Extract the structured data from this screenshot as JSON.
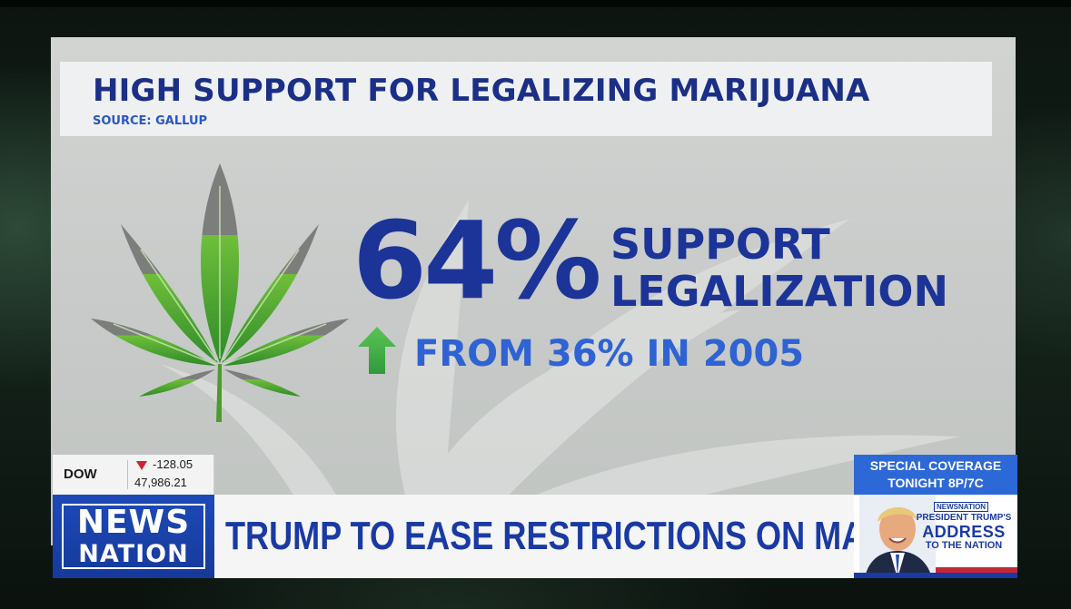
{
  "graphic": {
    "headline": "HIGH SUPPORT FOR LEGALIZING MARIJUANA",
    "source": "SOURCE: GALLUP",
    "stat_value": "64%",
    "stat_label_line1": "SUPPORT",
    "stat_label_line2": "LEGALIZATION",
    "change_text": "FROM 36% IN 2005"
  },
  "ticker": {
    "name": "DOW",
    "change": "-128.05",
    "value": "47,986.21"
  },
  "logo": {
    "line1": "NEWS",
    "line2": "NATION"
  },
  "lower_third": {
    "headline": "TRUMP TO EASE RESTRICTIONS ON MARIJUANA"
  },
  "special_coverage": {
    "line1": "SPECIAL COVERAGE",
    "line2": "TONIGHT 8P/7C"
  },
  "promo": {
    "brand": "NEWSNATION",
    "line1": "PRESIDENT TRUMP'S",
    "line2": "ADDRESS",
    "line3": "TO THE NATION"
  },
  "colors": {
    "headline_blue": "#1b2f86",
    "stat_blue": "#1c3397",
    "accent_blue": "#2f63d4",
    "arrow_green": "#4caf50",
    "ticker_red": "#d3202f"
  }
}
